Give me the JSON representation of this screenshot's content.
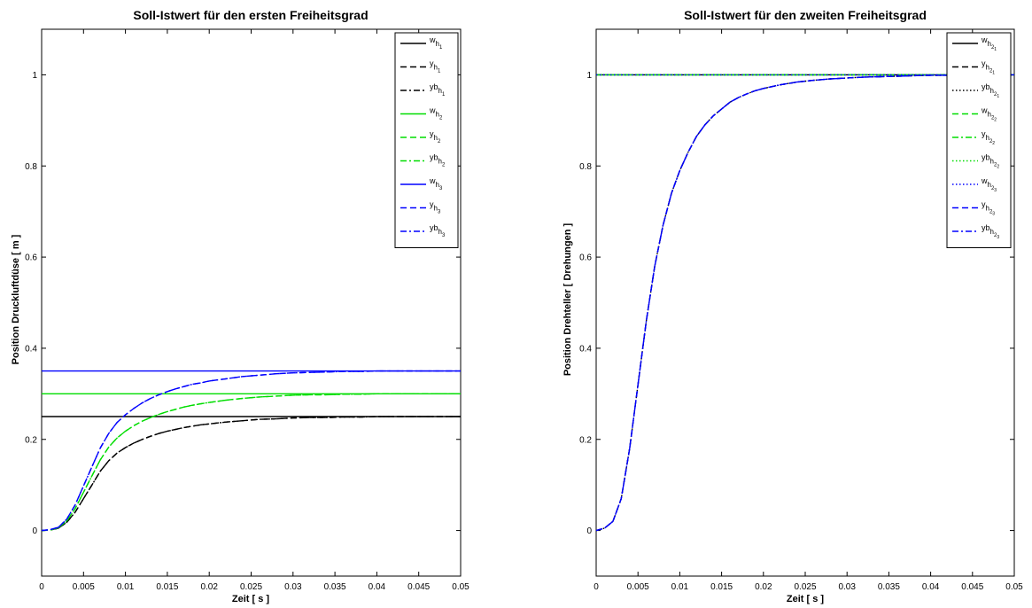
{
  "chart_data": [
    {
      "type": "line",
      "title": "Soll-Istwert für den ersten Freiheitsgrad",
      "xlabel": "Zeit [ s ]",
      "ylabel": "Position Druckluftdüse [ m ]",
      "xlim": [
        0,
        0.05
      ],
      "ylim": [
        -0.1,
        1.1
      ],
      "xticks": [
        0,
        0.005,
        0.01,
        0.015,
        0.02,
        0.025,
        0.03,
        0.035,
        0.04,
        0.045,
        0.05
      ],
      "xtick_labels": [
        "0",
        "0.005",
        "0.01",
        "0.015",
        "0.02",
        "0.025",
        "0.03",
        "0.035",
        "0.04",
        "0.045",
        "0.05"
      ],
      "yticks": [
        0,
        0.2,
        0.4,
        0.6,
        0.8,
        1
      ],
      "ytick_labels": [
        "0",
        "0.2",
        "0.4",
        "0.6",
        "0.8",
        "1"
      ],
      "grid": false,
      "legend_position": "top-right",
      "x": [
        0,
        0.001,
        0.002,
        0.003,
        0.004,
        0.005,
        0.006,
        0.007,
        0.008,
        0.009,
        0.01,
        0.011,
        0.012,
        0.013,
        0.014,
        0.015,
        0.016,
        0.017,
        0.018,
        0.019,
        0.02,
        0.022,
        0.024,
        0.026,
        0.028,
        0.03,
        0.032,
        0.034,
        0.036,
        0.038,
        0.04,
        0.042,
        0.044,
        0.046,
        0.048,
        0.05
      ],
      "series": [
        {
          "name": "w",
          "name_sub": "h",
          "name_subsub": "1",
          "color": "#000000",
          "dash": "solid",
          "values": [
            0.25,
            0.25,
            0.25,
            0.25,
            0.25,
            0.25,
            0.25,
            0.25,
            0.25,
            0.25,
            0.25,
            0.25,
            0.25,
            0.25,
            0.25,
            0.25,
            0.25,
            0.25,
            0.25,
            0.25,
            0.25,
            0.25,
            0.25,
            0.25,
            0.25,
            0.25,
            0.25,
            0.25,
            0.25,
            0.25,
            0.25,
            0.25,
            0.25,
            0.25,
            0.25,
            0.25
          ]
        },
        {
          "name": "y",
          "name_sub": "h",
          "name_subsub": "1",
          "color": "#000000",
          "dash": "dash",
          "values": [
            0,
            0.001,
            0.005,
            0.018,
            0.04,
            0.07,
            0.1,
            0.13,
            0.153,
            0.17,
            0.182,
            0.192,
            0.2,
            0.207,
            0.213,
            0.218,
            0.222,
            0.226,
            0.229,
            0.232,
            0.234,
            0.238,
            0.241,
            0.244,
            0.245,
            0.247,
            0.248,
            0.248,
            0.249,
            0.249,
            0.25,
            0.25,
            0.25,
            0.25,
            0.25,
            0.25
          ]
        },
        {
          "name": "yb",
          "name_sub": "h",
          "name_subsub": "1",
          "color": "#000000",
          "dash": "dashdot",
          "values": [
            0,
            0.001,
            0.005,
            0.018,
            0.04,
            0.07,
            0.1,
            0.13,
            0.153,
            0.17,
            0.182,
            0.192,
            0.2,
            0.207,
            0.213,
            0.218,
            0.222,
            0.226,
            0.229,
            0.232,
            0.234,
            0.238,
            0.241,
            0.244,
            0.245,
            0.247,
            0.248,
            0.248,
            0.249,
            0.249,
            0.25,
            0.25,
            0.25,
            0.25,
            0.25,
            0.25
          ]
        },
        {
          "name": "w",
          "name_sub": "h",
          "name_subsub": "2",
          "color": "#00dd00",
          "dash": "solid",
          "values": [
            0.3,
            0.3,
            0.3,
            0.3,
            0.3,
            0.3,
            0.3,
            0.3,
            0.3,
            0.3,
            0.3,
            0.3,
            0.3,
            0.3,
            0.3,
            0.3,
            0.3,
            0.3,
            0.3,
            0.3,
            0.3,
            0.3,
            0.3,
            0.3,
            0.3,
            0.3,
            0.3,
            0.3,
            0.3,
            0.3,
            0.3,
            0.3,
            0.3,
            0.3,
            0.3,
            0.3
          ]
        },
        {
          "name": "y",
          "name_sub": "h",
          "name_subsub": "2",
          "color": "#00dd00",
          "dash": "dash",
          "values": [
            0,
            0.001,
            0.006,
            0.021,
            0.048,
            0.084,
            0.12,
            0.155,
            0.183,
            0.203,
            0.218,
            0.23,
            0.24,
            0.248,
            0.255,
            0.261,
            0.266,
            0.271,
            0.275,
            0.278,
            0.281,
            0.286,
            0.29,
            0.293,
            0.295,
            0.297,
            0.298,
            0.298,
            0.299,
            0.299,
            0.3,
            0.3,
            0.3,
            0.3,
            0.3,
            0.3
          ]
        },
        {
          "name": "yb",
          "name_sub": "h",
          "name_subsub": "2",
          "color": "#00dd00",
          "dash": "dashdot",
          "values": [
            0,
            0.001,
            0.006,
            0.021,
            0.048,
            0.084,
            0.12,
            0.155,
            0.183,
            0.203,
            0.218,
            0.23,
            0.24,
            0.248,
            0.255,
            0.261,
            0.266,
            0.271,
            0.275,
            0.278,
            0.281,
            0.286,
            0.29,
            0.293,
            0.295,
            0.297,
            0.298,
            0.298,
            0.299,
            0.299,
            0.3,
            0.3,
            0.3,
            0.3,
            0.3,
            0.3
          ]
        },
        {
          "name": "w",
          "name_sub": "h",
          "name_subsub": "3",
          "color": "#0000ff",
          "dash": "solid",
          "values": [
            0.35,
            0.35,
            0.35,
            0.35,
            0.35,
            0.35,
            0.35,
            0.35,
            0.35,
            0.35,
            0.35,
            0.35,
            0.35,
            0.35,
            0.35,
            0.35,
            0.35,
            0.35,
            0.35,
            0.35,
            0.35,
            0.35,
            0.35,
            0.35,
            0.35,
            0.35,
            0.35,
            0.35,
            0.35,
            0.35,
            0.35,
            0.35,
            0.35,
            0.35,
            0.35,
            0.35
          ]
        },
        {
          "name": "y",
          "name_sub": "h",
          "name_subsub": "3",
          "color": "#0000ff",
          "dash": "dash",
          "values": [
            0,
            0.002,
            0.007,
            0.025,
            0.056,
            0.098,
            0.14,
            0.181,
            0.213,
            0.237,
            0.254,
            0.268,
            0.28,
            0.29,
            0.298,
            0.305,
            0.311,
            0.316,
            0.321,
            0.324,
            0.328,
            0.333,
            0.338,
            0.341,
            0.344,
            0.346,
            0.347,
            0.348,
            0.349,
            0.349,
            0.35,
            0.35,
            0.35,
            0.35,
            0.35,
            0.35
          ]
        },
        {
          "name": "yb",
          "name_sub": "h",
          "name_subsub": "3",
          "color": "#0000ff",
          "dash": "dashdot",
          "values": [
            0,
            0.002,
            0.007,
            0.025,
            0.056,
            0.098,
            0.14,
            0.181,
            0.213,
            0.237,
            0.254,
            0.268,
            0.28,
            0.29,
            0.298,
            0.305,
            0.311,
            0.316,
            0.321,
            0.324,
            0.328,
            0.333,
            0.338,
            0.341,
            0.344,
            0.346,
            0.347,
            0.348,
            0.349,
            0.349,
            0.35,
            0.35,
            0.35,
            0.35,
            0.35,
            0.35
          ]
        }
      ]
    },
    {
      "type": "line",
      "title": "Soll-Istwert für den zweiten Freiheitsgrad",
      "xlabel": "Zeit [ s ]",
      "ylabel": "Position Drehteller [ Drehungen ]",
      "xlim": [
        0,
        0.05
      ],
      "ylim": [
        -0.1,
        1.1
      ],
      "xticks": [
        0,
        0.005,
        0.01,
        0.015,
        0.02,
        0.025,
        0.03,
        0.035,
        0.04,
        0.045,
        0.05
      ],
      "xtick_labels": [
        "0",
        "0.005",
        "0.01",
        "0.015",
        "0.02",
        "0.025",
        "0.03",
        "0.035",
        "0.04",
        "0.045",
        "0.05"
      ],
      "yticks": [
        0,
        0.2,
        0.4,
        0.6,
        0.8,
        1
      ],
      "ytick_labels": [
        "0",
        "0.2",
        "0.4",
        "0.6",
        "0.8",
        "1"
      ],
      "grid": false,
      "legend_position": "top-right",
      "x": [
        0,
        0.001,
        0.002,
        0.003,
        0.004,
        0.005,
        0.006,
        0.007,
        0.008,
        0.009,
        0.01,
        0.011,
        0.012,
        0.013,
        0.014,
        0.015,
        0.016,
        0.017,
        0.018,
        0.019,
        0.02,
        0.022,
        0.024,
        0.026,
        0.028,
        0.03,
        0.032,
        0.034,
        0.036,
        0.038,
        0.04,
        0.042,
        0.044,
        0.046,
        0.048,
        0.05
      ],
      "series": [
        {
          "name": "w",
          "name_sub": "h",
          "name_subsub": "2",
          "name_subsub2": "1",
          "color": "#000000",
          "dash": "solid",
          "values": [
            1,
            1,
            1,
            1,
            1,
            1,
            1,
            1,
            1,
            1,
            1,
            1,
            1,
            1,
            1,
            1,
            1,
            1,
            1,
            1,
            1,
            1,
            1,
            1,
            1,
            1,
            1,
            1,
            1,
            1,
            1,
            1,
            1,
            1,
            1,
            1
          ]
        },
        {
          "name": "y",
          "name_sub": "h",
          "name_subsub": "2",
          "name_subsub2": "1",
          "color": "#000000",
          "dash": "dash",
          "values": [
            0,
            0.005,
            0.02,
            0.07,
            0.18,
            0.32,
            0.46,
            0.58,
            0.67,
            0.74,
            0.79,
            0.83,
            0.865,
            0.89,
            0.91,
            0.925,
            0.94,
            0.95,
            0.958,
            0.965,
            0.97,
            0.978,
            0.984,
            0.988,
            0.991,
            0.993,
            0.995,
            0.996,
            0.997,
            0.998,
            0.999,
            0.999,
            1,
            1,
            1,
            1
          ]
        },
        {
          "name": "yb",
          "name_sub": "h",
          "name_subsub": "2",
          "name_subsub2": "1",
          "color": "#000000",
          "dash": "dot",
          "values": [
            0,
            0.005,
            0.02,
            0.07,
            0.18,
            0.32,
            0.46,
            0.58,
            0.67,
            0.74,
            0.79,
            0.83,
            0.865,
            0.89,
            0.91,
            0.925,
            0.94,
            0.95,
            0.958,
            0.965,
            0.97,
            0.978,
            0.984,
            0.988,
            0.991,
            0.993,
            0.995,
            0.996,
            0.997,
            0.998,
            0.999,
            0.999,
            1,
            1,
            1,
            1
          ]
        },
        {
          "name": "w",
          "name_sub": "h",
          "name_subsub": "2",
          "name_subsub2": "2",
          "color": "#00dd00",
          "dash": "dash",
          "values": [
            1,
            1,
            1,
            1,
            1,
            1,
            1,
            1,
            1,
            1,
            1,
            1,
            1,
            1,
            1,
            1,
            1,
            1,
            1,
            1,
            1,
            1,
            1,
            1,
            1,
            1,
            1,
            1,
            1,
            1,
            1,
            1,
            1,
            1,
            1,
            1
          ]
        },
        {
          "name": "y",
          "name_sub": "h",
          "name_subsub": "2",
          "name_subsub2": "2",
          "color": "#00dd00",
          "dash": "dashdot",
          "values": [
            1,
            1,
            1,
            1,
            1,
            1,
            1,
            1,
            1,
            1,
            1,
            1,
            1,
            1,
            1,
            1,
            1,
            1,
            1,
            1,
            1,
            1,
            1,
            1,
            1,
            1,
            1,
            1,
            1,
            1,
            1,
            1,
            1,
            1,
            1,
            1
          ]
        },
        {
          "name": "yb",
          "name_sub": "h",
          "name_subsub": "2",
          "name_subsub2": "2",
          "color": "#00dd00",
          "dash": "dot",
          "values": [
            1,
            1,
            1,
            1,
            1,
            1,
            1,
            1,
            1,
            1,
            1,
            1,
            1,
            1,
            1,
            1,
            1,
            1,
            1,
            1,
            1,
            1,
            1,
            1,
            1,
            1,
            1,
            1,
            1,
            1,
            1,
            1,
            1,
            1,
            1,
            1
          ]
        },
        {
          "name": "w",
          "name_sub": "h",
          "name_subsub": "2",
          "name_subsub2": "3",
          "color": "#0000ff",
          "dash": "dot",
          "values": [
            1,
            1,
            1,
            1,
            1,
            1,
            1,
            1,
            1,
            1,
            1,
            1,
            1,
            1,
            1,
            1,
            1,
            1,
            1,
            1,
            1,
            1,
            1,
            1,
            1,
            1,
            1,
            1,
            1,
            1,
            1,
            1,
            1,
            1,
            1,
            1
          ]
        },
        {
          "name": "y",
          "name_sub": "h",
          "name_subsub": "2",
          "name_subsub2": "3",
          "color": "#0000ff",
          "dash": "dash",
          "values": [
            0,
            0.005,
            0.02,
            0.07,
            0.18,
            0.32,
            0.46,
            0.58,
            0.67,
            0.74,
            0.79,
            0.83,
            0.865,
            0.89,
            0.91,
            0.925,
            0.94,
            0.95,
            0.958,
            0.965,
            0.97,
            0.978,
            0.984,
            0.988,
            0.991,
            0.993,
            0.995,
            0.996,
            0.997,
            0.998,
            0.999,
            0.999,
            1,
            1,
            1,
            1
          ]
        },
        {
          "name": "yb",
          "name_sub": "h",
          "name_subsub": "2",
          "name_subsub2": "3",
          "color": "#0000ff",
          "dash": "dashdot",
          "values": [
            0,
            0.005,
            0.02,
            0.07,
            0.18,
            0.32,
            0.46,
            0.58,
            0.67,
            0.74,
            0.79,
            0.83,
            0.865,
            0.89,
            0.91,
            0.925,
            0.94,
            0.95,
            0.958,
            0.965,
            0.97,
            0.978,
            0.984,
            0.988,
            0.991,
            0.993,
            0.995,
            0.996,
            0.997,
            0.998,
            0.999,
            0.999,
            1,
            1,
            1,
            1
          ]
        }
      ]
    }
  ]
}
